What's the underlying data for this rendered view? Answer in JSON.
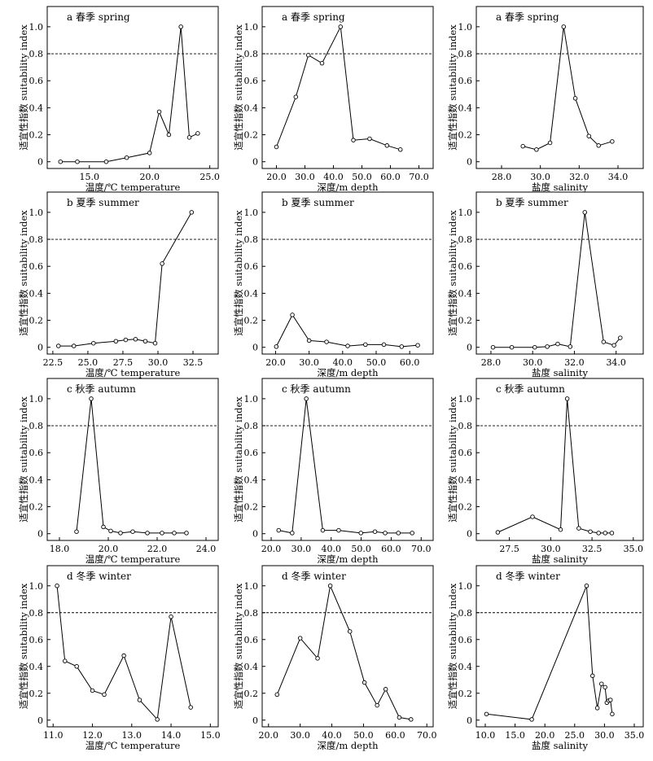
{
  "chart_data": [
    {
      "type": "line",
      "title": "a 春季 spring",
      "xlabel": "温度/℃ temperature",
      "ylabel": "适宜性指数 suitability index",
      "xlim": [
        11.5,
        25.7
      ],
      "ylim": [
        -0.05,
        1.15
      ],
      "xticks": [
        15,
        20,
        25
      ],
      "yticks": [
        0,
        0.2,
        0.4,
        0.6,
        0.8,
        1.0
      ],
      "reference_line": 0.8,
      "x": [
        12.6,
        14.0,
        16.4,
        18.1,
        20.0,
        20.8,
        21.6,
        22.6,
        23.3,
        24.0
      ],
      "y": [
        0.0,
        0.0,
        0.0,
        0.03,
        0.065,
        0.37,
        0.2,
        1.0,
        0.18,
        0.21
      ]
    },
    {
      "type": "line",
      "title": "a 春季 spring",
      "xlabel": "深度/m depth",
      "ylabel": "适宜性指数 suitability index",
      "xlim": [
        15,
        75
      ],
      "ylim": [
        -0.05,
        1.15
      ],
      "xticks": [
        20,
        30,
        40,
        50,
        60,
        70
      ],
      "yticks": [
        0,
        0.2,
        0.4,
        0.6,
        0.8,
        1.0
      ],
      "reference_line": 0.8,
      "x": [
        20,
        26.8,
        31.2,
        36.0,
        42.5,
        47.0,
        52.7,
        58.8,
        63.5
      ],
      "y": [
        0.11,
        0.48,
        0.79,
        0.73,
        1.0,
        0.16,
        0.17,
        0.12,
        0.09
      ]
    },
    {
      "type": "line",
      "title": "a 春季 spring",
      "xlabel": "盐度 salinity",
      "ylabel": "适宜性指数 suitability index",
      "xlim": [
        26.7,
        35.3
      ],
      "ylim": [
        -0.05,
        1.15
      ],
      "xticks": [
        28,
        30,
        32,
        34
      ],
      "yticks": [
        0,
        0.2,
        0.4,
        0.6,
        0.8,
        1.0
      ],
      "reference_line": 0.8,
      "x": [
        29.1,
        29.8,
        30.5,
        31.2,
        31.8,
        32.5,
        33.0,
        33.7
      ],
      "y": [
        0.115,
        0.09,
        0.14,
        1.0,
        0.47,
        0.19,
        0.12,
        0.15
      ]
    },
    {
      "type": "line",
      "title": "b 夏季 summer",
      "xlabel": "温度/℃ temperature",
      "ylabel": "适宜性指数 suitability index",
      "xlim": [
        22.1,
        34.3
      ],
      "ylim": [
        -0.05,
        1.15
      ],
      "xticks": [
        22.5,
        25.0,
        27.5,
        30.0,
        32.5
      ],
      "yticks": [
        0,
        0.2,
        0.4,
        0.6,
        0.8,
        1.0
      ],
      "reference_line": 0.8,
      "x": [
        22.9,
        24.0,
        25.4,
        27.0,
        27.7,
        28.4,
        29.1,
        29.8,
        30.3,
        32.4
      ],
      "y": [
        0.01,
        0.01,
        0.03,
        0.045,
        0.055,
        0.06,
        0.045,
        0.03,
        0.62,
        1.0
      ]
    },
    {
      "type": "line",
      "title": "b 夏季 summer",
      "xlabel": "深度/m depth",
      "ylabel": "适宜性指数 suitability index",
      "xlim": [
        16,
        67
      ],
      "ylim": [
        -0.05,
        1.15
      ],
      "xticks": [
        20,
        30,
        40,
        50,
        60
      ],
      "yticks": [
        0,
        0.2,
        0.4,
        0.6,
        0.8,
        1.0
      ],
      "reference_line": 0.8,
      "x": [
        20.2,
        25.0,
        30.0,
        35.2,
        41.5,
        46.8,
        52.3,
        57.6,
        62.4
      ],
      "y": [
        0.005,
        0.24,
        0.05,
        0.04,
        0.01,
        0.02,
        0.02,
        0.005,
        0.015
      ]
    },
    {
      "type": "line",
      "title": "b 夏季 summer",
      "xlabel": "盐度 salinity",
      "ylabel": "适宜性指数 suitability index",
      "xlim": [
        27.3,
        35.3
      ],
      "ylim": [
        -0.05,
        1.15
      ],
      "xticks": [
        28,
        30,
        32,
        34
      ],
      "yticks": [
        0,
        0.2,
        0.4,
        0.6,
        0.8,
        1.0
      ],
      "reference_line": 0.8,
      "x": [
        28.1,
        29.0,
        30.1,
        30.7,
        31.2,
        31.8,
        32.5,
        33.4,
        33.9,
        34.2
      ],
      "y": [
        0.0,
        0.0,
        0.0,
        0.005,
        0.025,
        0.005,
        1.0,
        0.04,
        0.015,
        0.07
      ]
    },
    {
      "type": "line",
      "title": "c 秋季 autumn",
      "xlabel": "温度/℃ temperature",
      "ylabel": "适宜性指数 suitability index",
      "xlim": [
        17.5,
        24.5
      ],
      "ylim": [
        -0.05,
        1.15
      ],
      "xticks": [
        18,
        20,
        22,
        24
      ],
      "yticks": [
        0,
        0.2,
        0.4,
        0.6,
        0.8,
        1.0
      ],
      "reference_line": 0.8,
      "x": [
        18.7,
        19.3,
        19.8,
        20.1,
        20.5,
        21.0,
        21.6,
        22.2,
        22.7,
        23.2
      ],
      "y": [
        0.015,
        1.0,
        0.05,
        0.02,
        0.005,
        0.015,
        0.005,
        0.005,
        0.005,
        0.005
      ]
    },
    {
      "type": "line",
      "title": "c 秋季 autumn",
      "xlabel": "深度/m depth",
      "ylabel": "适宜性指数 suitability index",
      "xlim": [
        17,
        74
      ],
      "ylim": [
        -0.05,
        1.15
      ],
      "xticks": [
        20,
        30,
        40,
        50,
        60,
        70
      ],
      "yticks": [
        0,
        0.2,
        0.4,
        0.6,
        0.8,
        1.0
      ],
      "reference_line": 0.8,
      "x": [
        22.5,
        27.0,
        31.7,
        37.2,
        42.5,
        49.9,
        54.6,
        58.0,
        62.4,
        67.0
      ],
      "y": [
        0.025,
        0.005,
        1.0,
        0.025,
        0.025,
        0.005,
        0.015,
        0.005,
        0.005,
        0.005
      ]
    },
    {
      "type": "line",
      "title": "c 秋季 autumn",
      "xlabel": "盐度 salinity",
      "ylabel": "适宜性指数 suitability index",
      "xlim": [
        25.5,
        35.6
      ],
      "ylim": [
        -0.05,
        1.15
      ],
      "xticks": [
        27.5,
        30.0,
        32.5,
        35.0
      ],
      "yticks": [
        0,
        0.2,
        0.4,
        0.6,
        0.8,
        1.0
      ],
      "reference_line": 0.8,
      "x": [
        26.8,
        28.9,
        30.6,
        31.0,
        31.7,
        32.4,
        32.9,
        33.3,
        33.7
      ],
      "y": [
        0.01,
        0.125,
        0.03,
        1.0,
        0.04,
        0.015,
        0.005,
        0.005,
        0.005
      ]
    },
    {
      "type": "line",
      "title": "d 冬季 winter",
      "xlabel": "温度/℃ temperature",
      "ylabel": "适宜性指数 suitability index",
      "xlim": [
        10.85,
        15.2
      ],
      "ylim": [
        -0.05,
        1.15
      ],
      "xticks": [
        11,
        12,
        13,
        14,
        15
      ],
      "yticks": [
        0,
        0.2,
        0.4,
        0.6,
        0.8,
        1.0
      ],
      "reference_line": 0.8,
      "x": [
        11.1,
        11.3,
        11.6,
        12.0,
        12.3,
        12.8,
        13.2,
        13.65,
        14.0,
        14.5
      ],
      "y": [
        1.0,
        0.44,
        0.4,
        0.22,
        0.19,
        0.48,
        0.15,
        0.005,
        0.77,
        0.095
      ]
    },
    {
      "type": "line",
      "title": "d 冬季 winter",
      "xlabel": "深度/m depth",
      "ylabel": "适宜性指数 suitability index",
      "xlim": [
        18,
        72
      ],
      "ylim": [
        -0.05,
        1.15
      ],
      "xticks": [
        20,
        30,
        40,
        50,
        60,
        70
      ],
      "yticks": [
        0,
        0.2,
        0.4,
        0.6,
        0.8,
        1.0
      ],
      "reference_line": 0.8,
      "x": [
        22.7,
        30.0,
        35.5,
        39.5,
        45.7,
        50.3,
        54.3,
        57.0,
        61.3,
        65.0
      ],
      "y": [
        0.19,
        0.61,
        0.46,
        1.0,
        0.66,
        0.28,
        0.11,
        0.23,
        0.02,
        0.005
      ]
    },
    {
      "type": "line",
      "title": "d 冬季 winter",
      "xlabel": "盐度 salinity",
      "ylabel": "适宜性指数 suitability index",
      "xlim": [
        8.5,
        36.5
      ],
      "ylim": [
        -0.05,
        1.15
      ],
      "xticks": [
        10,
        15,
        20,
        25,
        30,
        35
      ],
      "yticks": [
        0,
        0.2,
        0.4,
        0.6,
        0.8,
        1.0
      ],
      "reference_line": 0.8,
      "x": [
        10.2,
        17.8,
        27.0,
        28.0,
        28.8,
        29.5,
        30.1,
        30.4,
        30.7,
        31.0,
        31.3
      ],
      "y": [
        0.045,
        0.005,
        1.0,
        0.33,
        0.09,
        0.27,
        0.245,
        0.13,
        0.145,
        0.15,
        0.045
      ]
    }
  ]
}
